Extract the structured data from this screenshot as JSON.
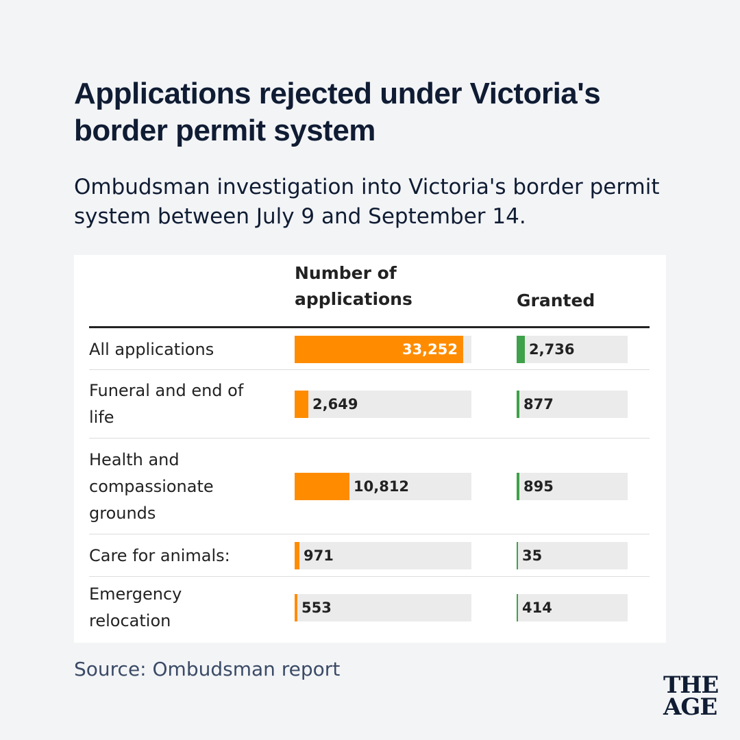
{
  "title": "Applications rejected under Victoria's border permit system",
  "subtitle": "Ombudsman investigation into Victoria's border permit system between July 9 and September 14.",
  "source": "Source: Ombudsman report",
  "logo": {
    "line1": "THE",
    "line2": "AGE"
  },
  "colors": {
    "applications": "#ff8c00",
    "granted": "#3fa14a",
    "track": "#ebebeb"
  },
  "chart_data": {
    "type": "table",
    "columns": [
      "Number of applications",
      "Granted"
    ],
    "max": {
      "applications": 33252,
      "granted": 2736
    },
    "rows": [
      {
        "label": "All applications",
        "applications": 33252,
        "applications_text": "33,252",
        "granted": 2736,
        "granted_text": "2,736"
      },
      {
        "label": "Funeral and end of life",
        "applications": 2649,
        "applications_text": "2,649",
        "granted": 877,
        "granted_text": "877"
      },
      {
        "label": "Health and compassionate grounds",
        "applications": 10812,
        "applications_text": "10,812",
        "granted": 895,
        "granted_text": "895"
      },
      {
        "label": "Care for animals:",
        "applications": 971,
        "applications_text": "971",
        "granted": 35,
        "granted_text": "35"
      },
      {
        "label": "Emergency relocation",
        "applications": 553,
        "applications_text": "553",
        "granted": 414,
        "granted_text": "414"
      }
    ]
  }
}
